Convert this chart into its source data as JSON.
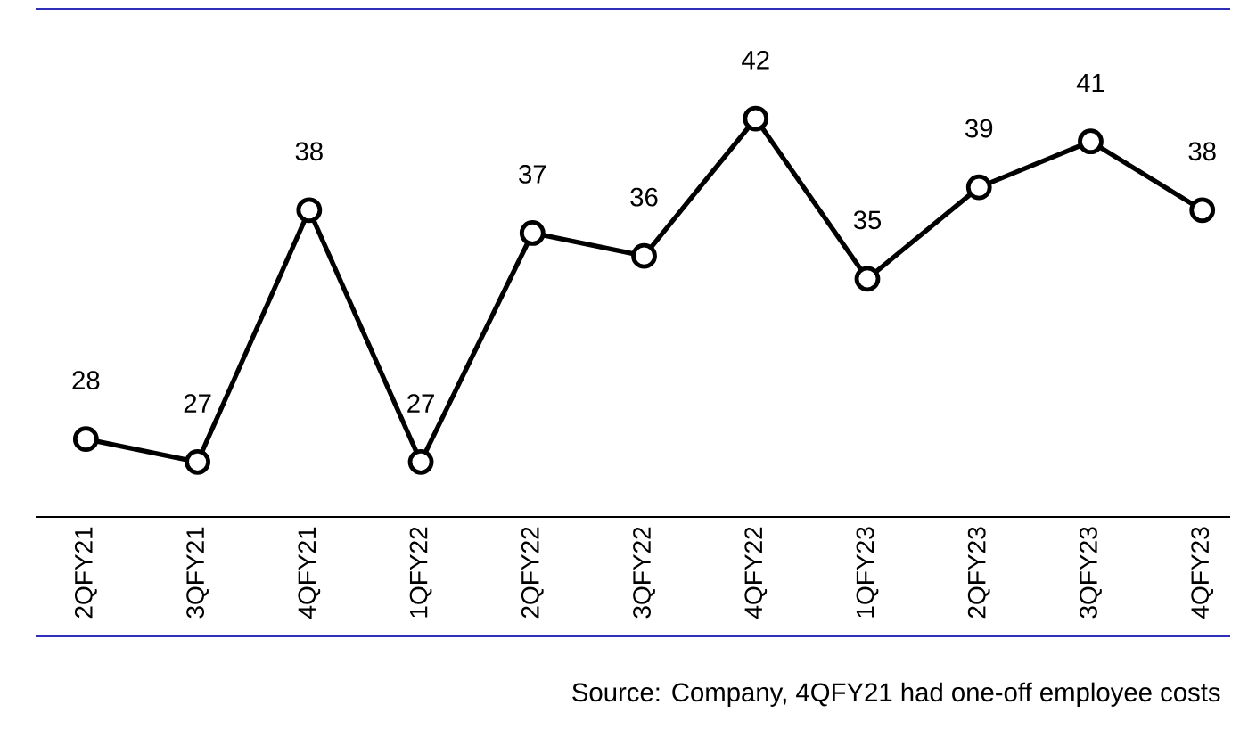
{
  "chart_data": {
    "type": "line",
    "categories": [
      "2QFY21",
      "3QFY21",
      "4QFY21",
      "1QFY22",
      "2QFY22",
      "3QFY22",
      "4QFY22",
      "1QFY23",
      "2QFY23",
      "3QFY23",
      "4QFY23"
    ],
    "values": [
      28,
      27,
      38,
      27,
      37,
      36,
      42,
      35,
      39,
      41,
      38
    ],
    "color": "#000000",
    "marker": "circle",
    "data_labels": true,
    "annotations": [
      "Source: Company, 4QFY21 had one-off employee costs"
    ]
  }
}
